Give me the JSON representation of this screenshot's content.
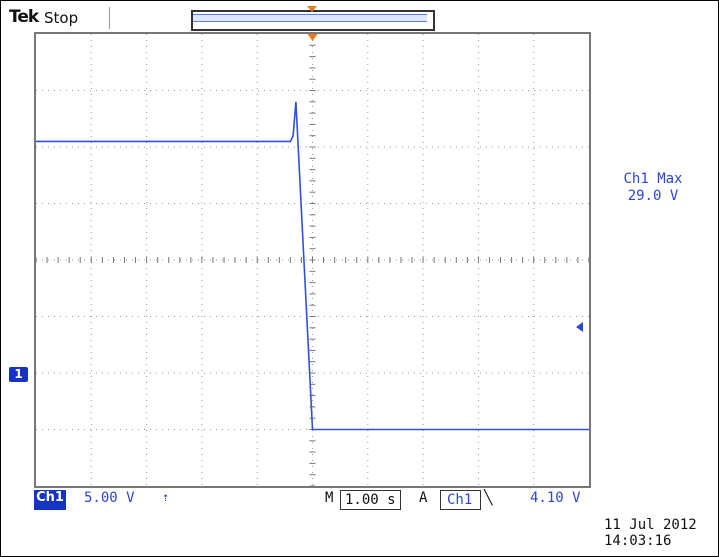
{
  "header": {
    "brand": "Tek",
    "run_state": "Stop"
  },
  "measurement": {
    "label": "Ch1 Max",
    "value": "29.0 V"
  },
  "channel_marker": "1",
  "readouts": {
    "channel": "Ch1",
    "volts_per_div": "5.00 V",
    "bandwidth_icon": "bw-limit-icon",
    "timebase_prefix": "M",
    "time_per_div": "1.00 s",
    "trigger_mode": "A",
    "trigger_source": "Ch1",
    "trigger_slope_icon": "falling-edge-icon",
    "trigger_level": "4.10 V"
  },
  "timestamp": {
    "date": "11 Jul  2012",
    "time": "14:03:16"
  },
  "colors": {
    "trace": "#3050e0",
    "trigger_marker": "#e87b1c",
    "channel": "#1533c4"
  },
  "chart_data": {
    "type": "line",
    "x": [
      -5.0,
      -0.4,
      -0.35,
      -0.3,
      0.0,
      5.0
    ],
    "series": [
      {
        "values": [
          25.5,
          25.5,
          26.0,
          29.0,
          0.0,
          0.0
        ]
      }
    ],
    "xlim": [
      -5,
      5
    ],
    "ylim": [
      -5,
      35
    ],
    "grid": true
  }
}
